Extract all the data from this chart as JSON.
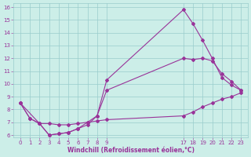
{
  "background_color": "#cceee8",
  "line_color": "#993399",
  "grid_color": "#99cccc",
  "xlabel": "Windchill (Refroidissement éolien,°C)",
  "ylim": [
    5.8,
    16.3
  ],
  "yticks": [
    6,
    7,
    8,
    9,
    10,
    11,
    12,
    13,
    14,
    15,
    16
  ],
  "xlim": [
    -0.7,
    23.7
  ],
  "xtick_positions": [
    0,
    1,
    2,
    3,
    4,
    5,
    6,
    7,
    8,
    9,
    17,
    18,
    19,
    20,
    21,
    22,
    23
  ],
  "xtick_labels": [
    "0",
    "1",
    "2",
    "3",
    "4",
    "5",
    "6",
    "7",
    "8",
    "9",
    "17",
    "18",
    "19",
    "20",
    "21",
    "22",
    "23"
  ],
  "line1_x": [
    0,
    1,
    2,
    3,
    4,
    5,
    6,
    7,
    8,
    9,
    17,
    18,
    19,
    20,
    21,
    22,
    23
  ],
  "line1_y": [
    8.5,
    7.3,
    6.9,
    6.0,
    6.1,
    6.2,
    6.5,
    6.8,
    7.5,
    10.3,
    15.8,
    14.7,
    13.4,
    12.0,
    10.5,
    9.9,
    9.5
  ],
  "line2_x": [
    0,
    1,
    2,
    3,
    4,
    5,
    6,
    7,
    8,
    9,
    17,
    18,
    19,
    20,
    21,
    22,
    23
  ],
  "line2_y": [
    8.5,
    7.3,
    6.9,
    6.0,
    6.1,
    6.2,
    6.5,
    7.0,
    7.5,
    9.5,
    12.0,
    11.9,
    12.0,
    11.8,
    10.8,
    10.2,
    9.5
  ],
  "line3_x": [
    0,
    2,
    3,
    4,
    5,
    6,
    7,
    8,
    9,
    17,
    18,
    19,
    20,
    21,
    22,
    23
  ],
  "line3_y": [
    8.5,
    6.9,
    6.9,
    6.8,
    6.8,
    6.9,
    7.0,
    7.1,
    7.2,
    7.5,
    7.8,
    8.2,
    8.5,
    8.8,
    9.0,
    9.3
  ],
  "marker": "D",
  "markersize": 2.0,
  "linewidth": 0.8,
  "tick_fontsize": 5.0,
  "xlabel_fontsize": 5.5
}
